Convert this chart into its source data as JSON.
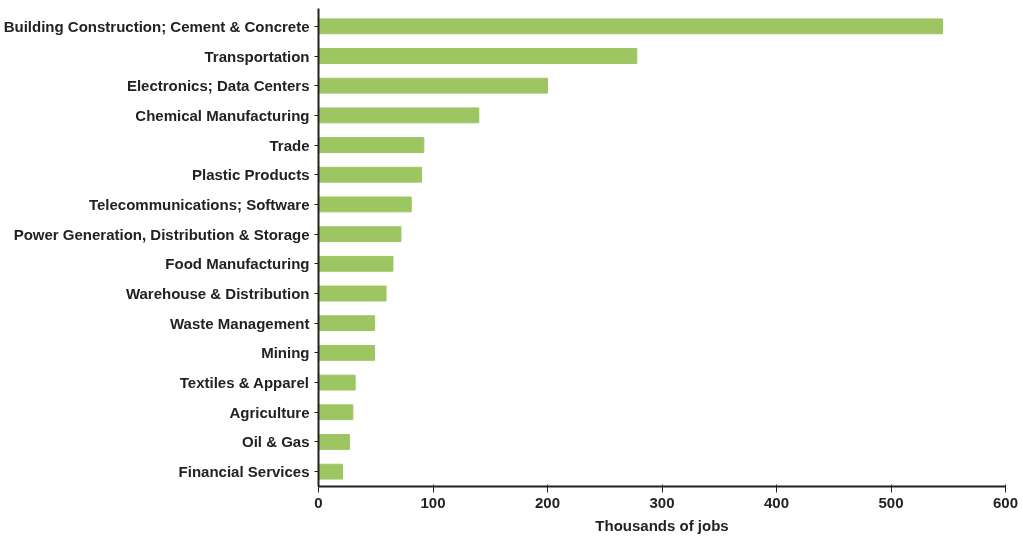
{
  "chart_data": {
    "type": "bar",
    "orientation": "horizontal",
    "xlabel": "Thousands of jobs",
    "categories": [
      "Building Construction; Cement & Concrete",
      "Transportation",
      "Electronics; Data Centers",
      "Chemical Manufacturing",
      "Trade",
      "Plastic Products",
      "Telecommunications; Software",
      "Power Generation, Distribution & Storage",
      "Food Manufacturing",
      "Warehouse & Distribution",
      "Waste Management",
      "Mining",
      "Textiles & Apparel",
      "Agriculture",
      "Oil & Gas",
      "Financial Services"
    ],
    "values": [
      545,
      278,
      200,
      140,
      92,
      90,
      81,
      72,
      65,
      59,
      49,
      49,
      32,
      30,
      27,
      21
    ],
    "color": "#9dc562",
    "xlim": [
      0,
      600
    ],
    "xticks": [
      0,
      100,
      200,
      300,
      400,
      500,
      600
    ],
    "grid": false
  }
}
